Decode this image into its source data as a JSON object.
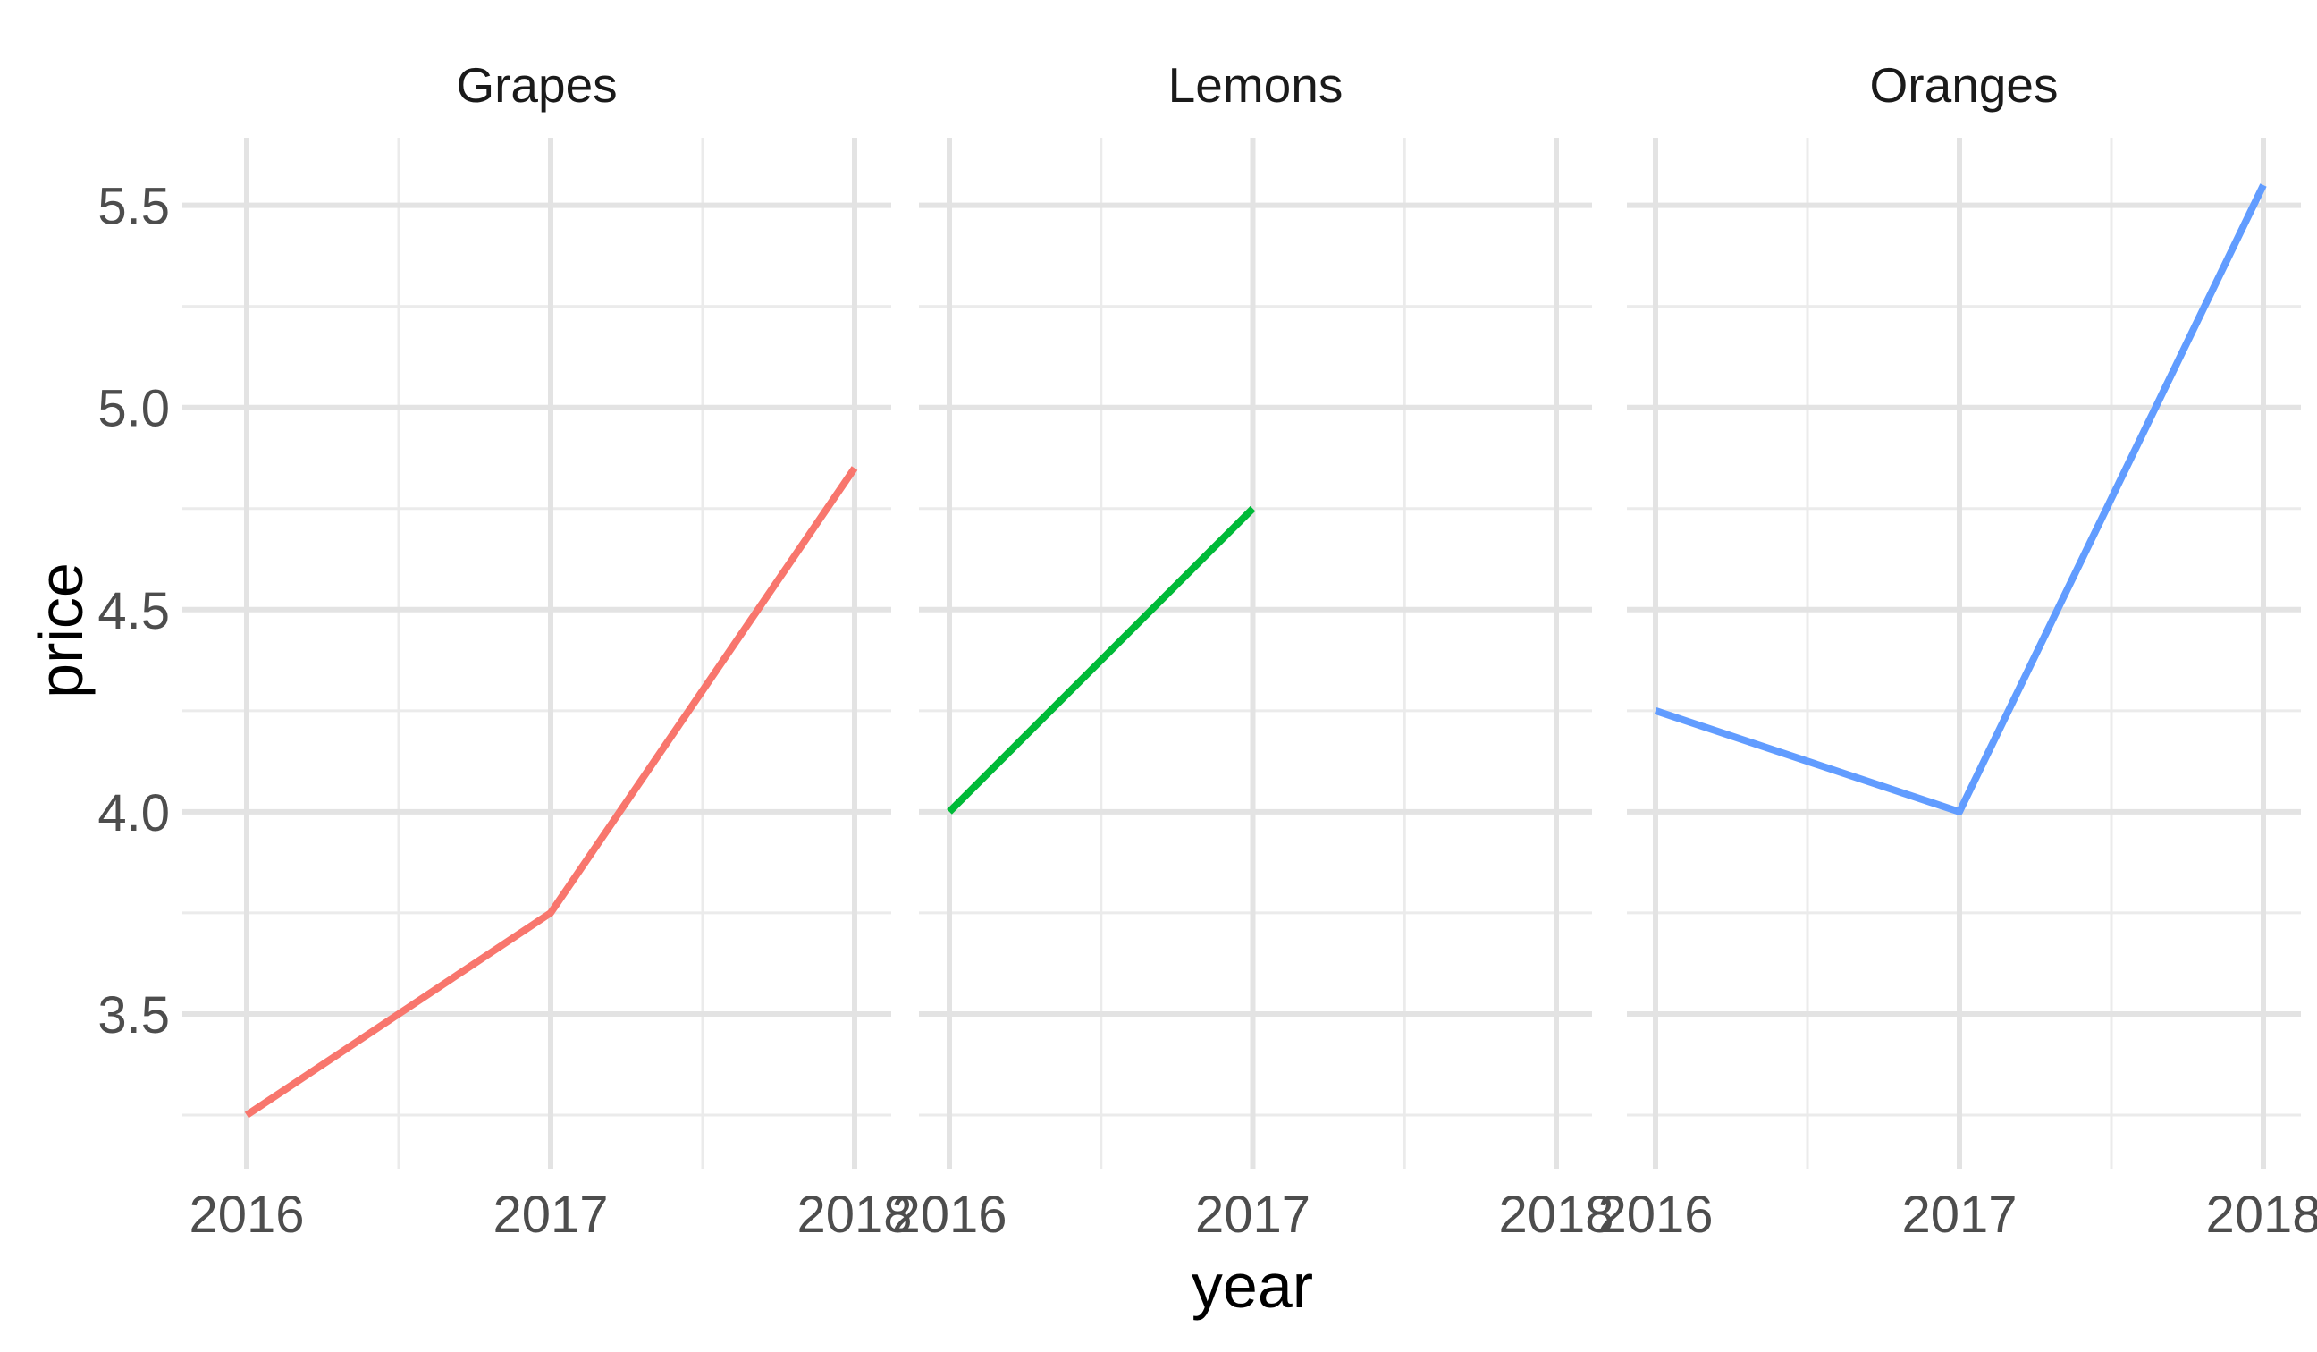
{
  "chart_data": {
    "type": "line",
    "facet_variable_values": [
      "Grapes",
      "Lemons",
      "Oranges"
    ],
    "xlabel": "year",
    "ylabel": "price",
    "x_ticks": [
      2016,
      2017,
      2018
    ],
    "x_tick_labels": [
      "2016",
      "2017",
      "2018"
    ],
    "y_ticks": [
      3.5,
      4.0,
      4.5,
      5.0,
      5.5
    ],
    "y_tick_labels": [
      "3.5",
      "4.0",
      "4.5",
      "5.0",
      "5.5"
    ],
    "xlim": [
      2016,
      2018
    ],
    "ylim": [
      3.25,
      5.55
    ],
    "grid": true,
    "legend": "none",
    "panels": [
      {
        "title": "Grapes",
        "color": "#F8766D",
        "x": [
          2016,
          2017,
          2018
        ],
        "y": [
          3.25,
          3.75,
          4.85
        ]
      },
      {
        "title": "Lemons",
        "color": "#00BA38",
        "x": [
          2016,
          2017
        ],
        "y": [
          4.0,
          4.75
        ]
      },
      {
        "title": "Oranges",
        "color": "#619CFF",
        "x": [
          2016,
          2017,
          2018
        ],
        "y": [
          4.25,
          4.0,
          5.55
        ]
      }
    ]
  }
}
